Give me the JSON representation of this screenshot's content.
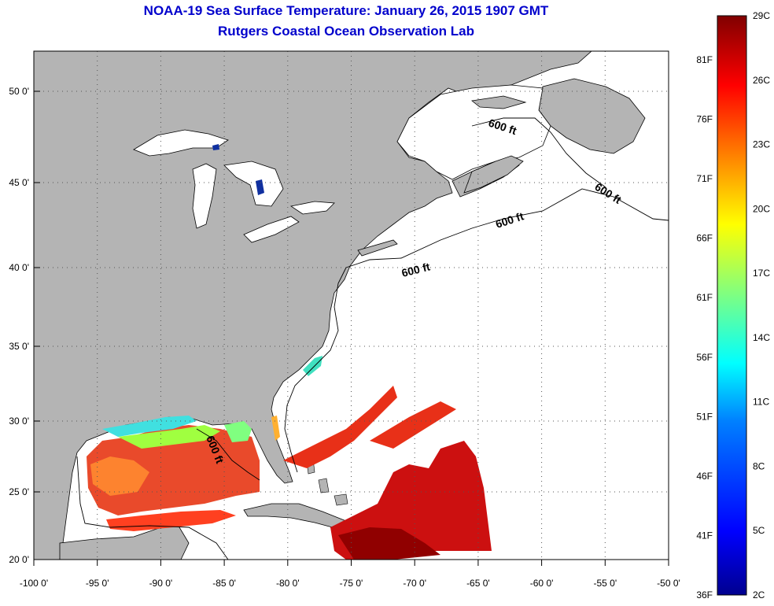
{
  "title": "NOAA-19 Sea Surface Temperature:  January 26, 2015 1907 GMT",
  "subtitle": "Rutgers Coastal Ocean Observation Lab",
  "colors": {
    "land": "#b4b4b4",
    "ocean": "#ffffff",
    "title": "#0000cc"
  },
  "lon_labels": [
    "-100 0'",
    "-95 0'",
    "-90 0'",
    "-85 0'",
    "-80 0'",
    "-75 0'",
    "-70 0'",
    "-65 0'",
    "-60 0'",
    "-55 0'",
    "-50 0'"
  ],
  "lat_labels": [
    "20 0'",
    "25 0'",
    "30 0'",
    "35 0'",
    "40 0'",
    "45 0'",
    "50 0'"
  ],
  "contour_labels": [
    "600 ft",
    "600 ft",
    "600 ft",
    "600 ft",
    "600 ft"
  ],
  "colorbar": {
    "celsius_labels": [
      "29C",
      "26C",
      "23C",
      "20C",
      "17C",
      "14C",
      "11C",
      "8C",
      "5C",
      "2C"
    ],
    "fahrenheit_labels": [
      "81F",
      "76F",
      "71F",
      "66F",
      "61F",
      "56F",
      "51F",
      "46F",
      "41F",
      "36F"
    ],
    "range_c": [
      2,
      29
    ],
    "colors": [
      "#00008f",
      "#0000ff",
      "#0080ff",
      "#00ffff",
      "#80ff80",
      "#ffff00",
      "#ff8000",
      "#ff0000",
      "#800000"
    ]
  }
}
